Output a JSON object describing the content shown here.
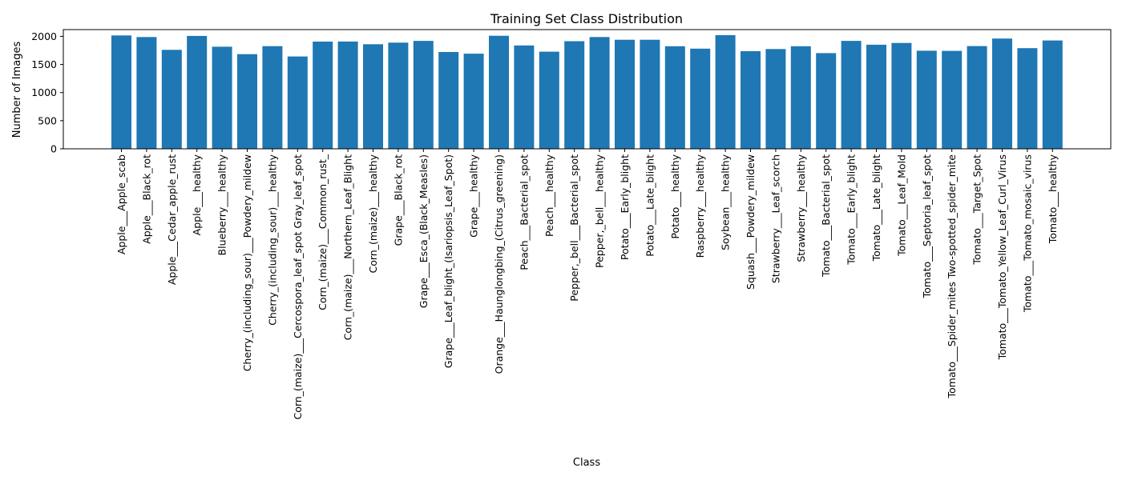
{
  "chart_data": {
    "type": "bar",
    "title": "Training Set Class Distribution",
    "xlabel": "Class",
    "ylabel": "Number of Images",
    "ylim": [
      0,
      2120
    ],
    "yticks": [
      0,
      500,
      1000,
      1500,
      2000
    ],
    "grid": false,
    "bar_color": "#1f77b4",
    "categories": [
      "Apple___Apple_scab",
      "Apple___Black_rot",
      "Apple___Cedar_apple_rust",
      "Apple___healthy",
      "Blueberry___healthy",
      "Cherry_(including_sour)___Powdery_mildew",
      "Cherry_(including_sour)___healthy",
      "Corn_(maize)___Cercospora_leaf_spot Gray_leaf_spot",
      "Corn_(maize)___Common_rust_",
      "Corn_(maize)___Northern_Leaf_Blight",
      "Corn_(maize)___healthy",
      "Grape___Black_rot",
      "Grape___Esca_(Black_Measles)",
      "Grape___Leaf_blight_(Isariopsis_Leaf_Spot)",
      "Grape___healthy",
      "Orange___Haunglongbing_(Citrus_greening)",
      "Peach___Bacterial_spot",
      "Peach___healthy",
      "Pepper,_bell___Bacterial_spot",
      "Pepper,_bell___healthy",
      "Potato___Early_blight",
      "Potato___Late_blight",
      "Potato___healthy",
      "Raspberry___healthy",
      "Soybean___healthy",
      "Squash___Powdery_mildew",
      "Strawberry___Leaf_scorch",
      "Strawberry___healthy",
      "Tomato___Bacterial_spot",
      "Tomato___Early_blight",
      "Tomato___Late_blight",
      "Tomato___Leaf_Mold",
      "Tomato___Septoria_leaf_spot",
      "Tomato___Spider_mites Two-spotted_spider_mite",
      "Tomato___Target_Spot",
      "Tomato___Tomato_Yellow_Leaf_Curl_Virus",
      "Tomato___Tomato_mosaic_virus",
      "Tomato___healthy"
    ],
    "values": [
      2016,
      1987,
      1760,
      2008,
      1816,
      1683,
      1826,
      1642,
      1907,
      1908,
      1859,
      1888,
      1920,
      1722,
      1692,
      2010,
      1838,
      1728,
      1913,
      1988,
      1939,
      1939,
      1824,
      1781,
      2022,
      1736,
      1774,
      1824,
      1702,
      1920,
      1851,
      1882,
      1745,
      1741,
      1827,
      1961,
      1790,
      1926
    ]
  }
}
